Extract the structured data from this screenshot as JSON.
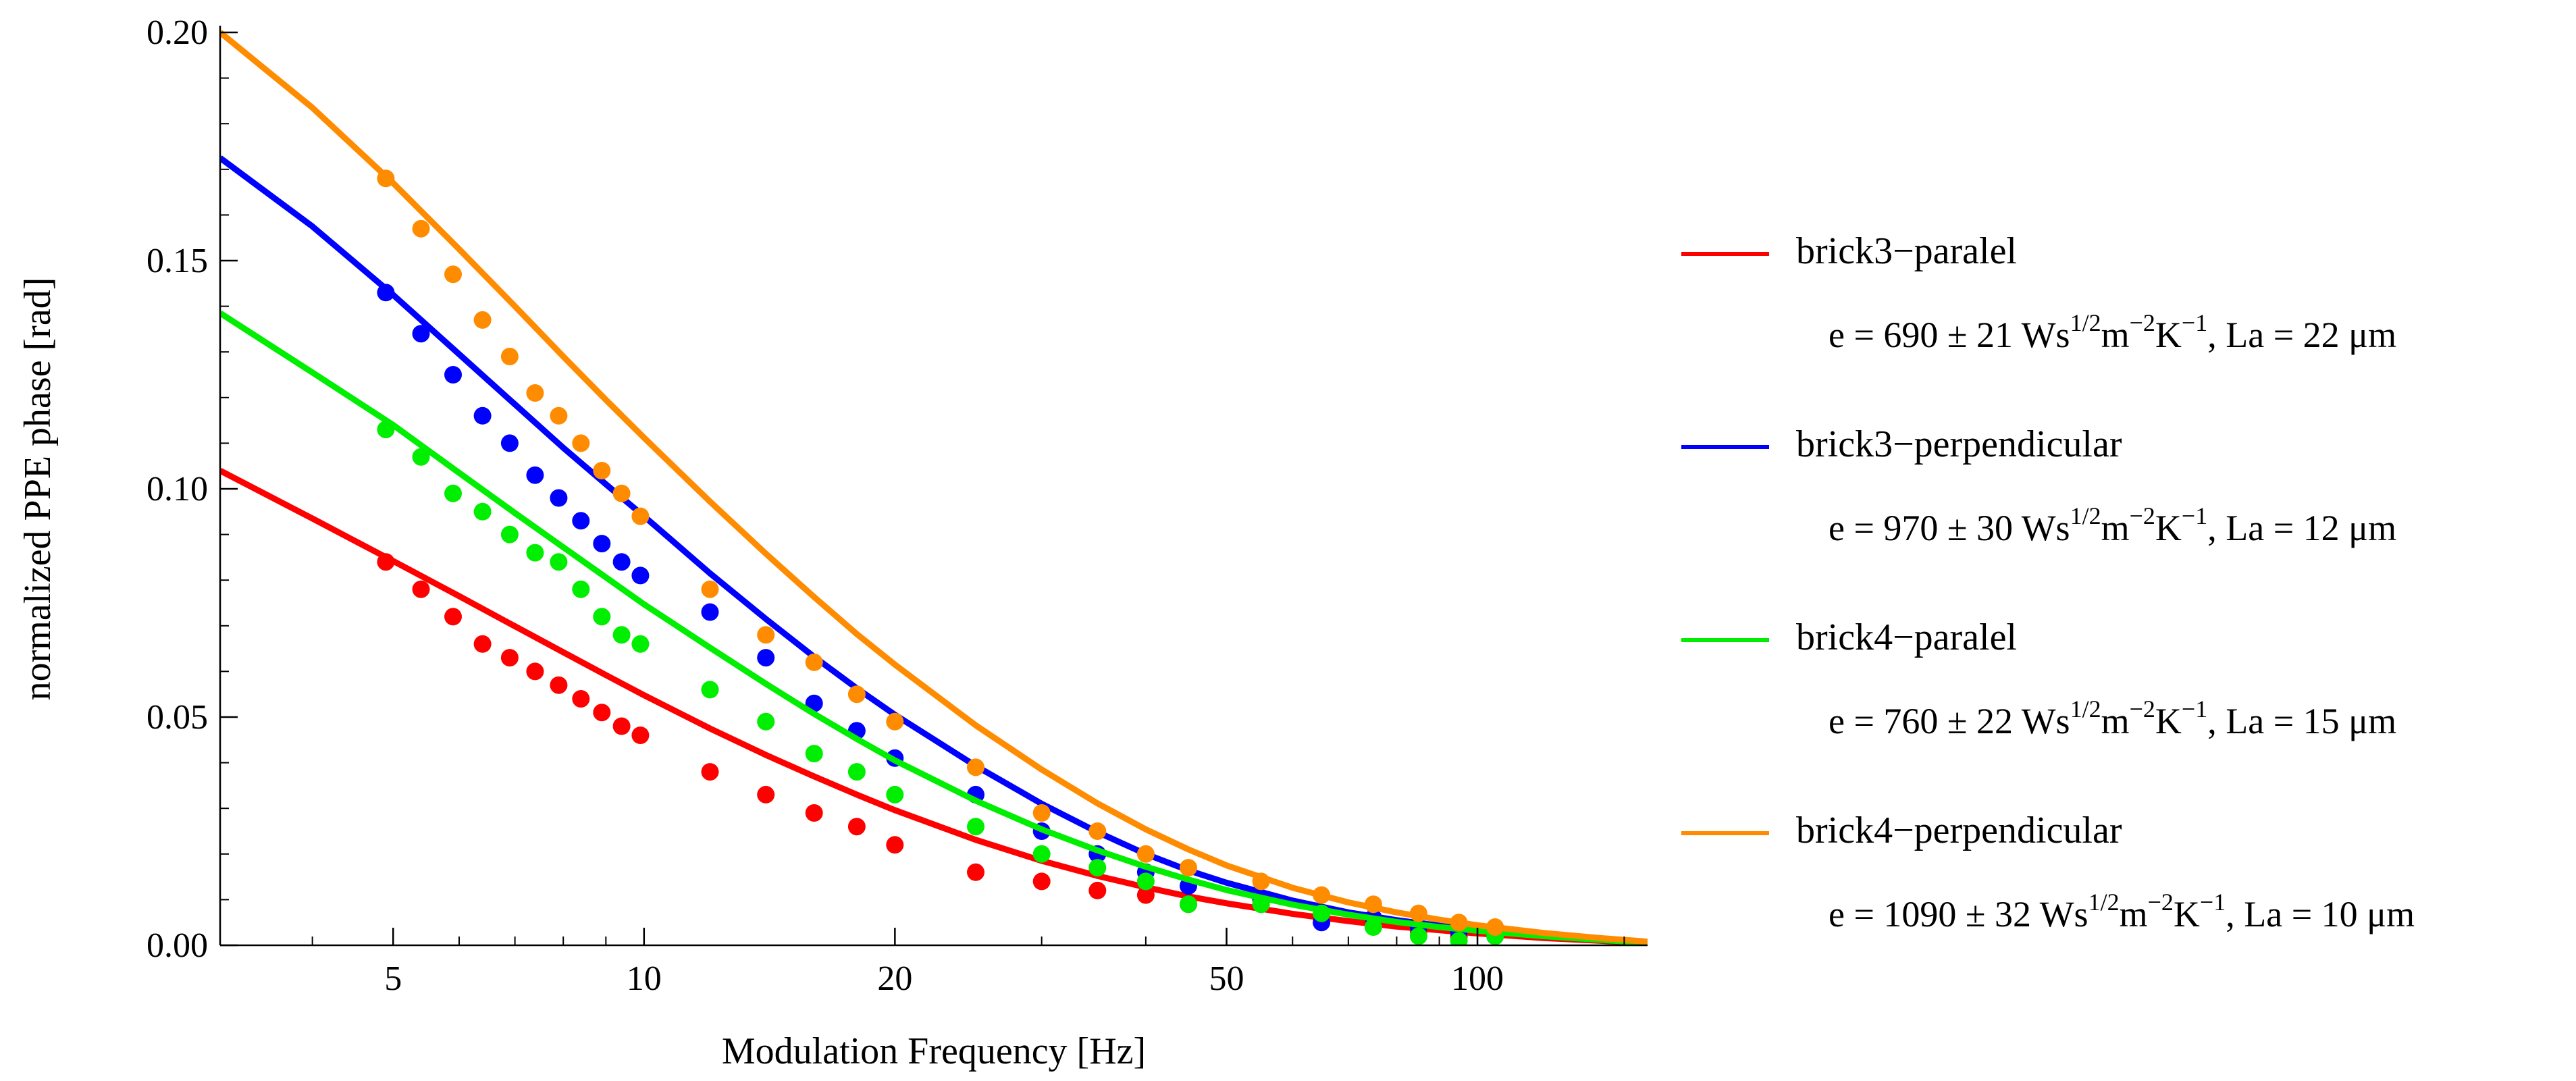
{
  "chart_data": {
    "type": "scatter",
    "title": "",
    "xlabel": "Modulation Frequency [Hz]",
    "ylabel": "normalized PPE phase  [rad]",
    "xscale": "log",
    "xlim": [
      3.1,
      160
    ],
    "ylim": [
      0,
      0.2
    ],
    "xticks": [
      5,
      10,
      20,
      50,
      100
    ],
    "xtick_labels": [
      "5",
      "10",
      "20",
      "50",
      "100"
    ],
    "yticks": [
      0,
      0.05,
      0.1,
      0.15,
      0.2
    ],
    "ytick_labels": [
      "0.00",
      "0.05",
      "0.10",
      "0.15",
      "0.20"
    ],
    "legend_position": "right",
    "series": [
      {
        "name": "brick3−paralel",
        "color": "#ff0000",
        "e_prefix": "e = 690 ± 21 Ws",
        "e_sup1": "1/2",
        "e_m": "m",
        "e_sup2": "−2",
        "e_K": "K",
        "e_sup3": "−1",
        "la_text": ",   La = 22 μm",
        "x": [
          4.9,
          5.4,
          5.9,
          6.4,
          6.9,
          7.4,
          7.9,
          8.4,
          8.9,
          9.4,
          9.9,
          12,
          14,
          16,
          18,
          20,
          25,
          30,
          35,
          40,
          45,
          55,
          65,
          75,
          85,
          95,
          105
        ],
        "y": [
          0.084,
          0.078,
          0.072,
          0.066,
          0.063,
          0.06,
          0.057,
          0.054,
          0.051,
          0.048,
          0.046,
          0.038,
          0.033,
          0.029,
          0.026,
          0.022,
          0.016,
          0.014,
          0.012,
          0.011,
          0.009,
          0.009,
          0.006,
          0.005,
          0.003,
          0.002,
          0.003
        ],
        "fit_x": [
          3.1,
          4,
          5,
          6,
          7,
          8,
          9,
          10,
          12,
          14,
          16,
          18,
          20,
          25,
          30,
          35,
          40,
          45,
          50,
          60,
          70,
          80,
          90,
          100,
          120,
          140,
          160
        ],
        "fit_y": [
          0.104,
          0.0935,
          0.0842,
          0.0765,
          0.0699,
          0.0642,
          0.0592,
          0.0548,
          0.0475,
          0.0417,
          0.037,
          0.033,
          0.0296,
          0.0231,
          0.0185,
          0.0152,
          0.0127,
          0.0107,
          0.0092,
          0.0069,
          0.0053,
          0.0041,
          0.0033,
          0.0026,
          0.0016,
          0.001,
          0.0004
        ]
      },
      {
        "name": "brick3−perpendicular",
        "color": "#0000ff",
        "e_prefix": "e = 970 ± 30 Ws",
        "e_sup1": "1/2",
        "e_m": "m",
        "e_sup2": "−2",
        "e_K": "K",
        "e_sup3": "−1",
        "la_text": ",   La = 12 μm",
        "x": [
          4.9,
          5.4,
          5.9,
          6.4,
          6.9,
          7.4,
          7.9,
          8.4,
          8.9,
          9.4,
          9.9,
          12,
          14,
          16,
          18,
          20,
          25,
          30,
          35,
          40,
          45,
          55,
          65,
          75,
          85,
          95,
          105
        ],
        "y": [
          0.143,
          0.134,
          0.125,
          0.116,
          0.11,
          0.103,
          0.098,
          0.093,
          0.088,
          0.084,
          0.081,
          0.073,
          0.063,
          0.053,
          0.047,
          0.041,
          0.033,
          0.025,
          0.02,
          0.016,
          0.013,
          0.01,
          0.005,
          0.006,
          0.004,
          0.003,
          0.002
        ],
        "fit_x": [
          3.1,
          4,
          5,
          6,
          7,
          8,
          9,
          10,
          12,
          14,
          16,
          18,
          20,
          25,
          30,
          35,
          40,
          45,
          50,
          60,
          70,
          80,
          90,
          100,
          120,
          140,
          160
        ],
        "fit_y": [
          0.1725,
          0.1575,
          0.1425,
          0.1295,
          0.1185,
          0.109,
          0.101,
          0.094,
          0.0815,
          0.0715,
          0.0632,
          0.0563,
          0.0505,
          0.0393,
          0.031,
          0.0248,
          0.02,
          0.0164,
          0.0137,
          0.0098,
          0.0072,
          0.0055,
          0.0043,
          0.0034,
          0.0021,
          0.0012,
          0.0005
        ]
      },
      {
        "name": "brick4−paralel",
        "color": "#00ee00",
        "e_prefix": "e = 760 ± 22 Ws",
        "e_sup1": "1/2",
        "e_m": "m",
        "e_sup2": "−2",
        "e_K": "K",
        "e_sup3": "−1",
        "la_text": ",   La = 15 μm",
        "x": [
          4.9,
          5.4,
          5.9,
          6.4,
          6.9,
          7.4,
          7.9,
          8.4,
          8.9,
          9.4,
          9.9,
          12,
          14,
          16,
          18,
          20,
          25,
          30,
          35,
          40,
          45,
          55,
          65,
          75,
          85,
          95,
          105
        ],
        "y": [
          0.113,
          0.107,
          0.099,
          0.095,
          0.09,
          0.086,
          0.084,
          0.078,
          0.072,
          0.068,
          0.066,
          0.056,
          0.049,
          0.042,
          0.038,
          0.033,
          0.026,
          0.02,
          0.017,
          0.014,
          0.009,
          0.009,
          0.007,
          0.004,
          0.002,
          0.001,
          0.002
        ],
        "fit_x": [
          3.1,
          4,
          5,
          6,
          7,
          8,
          9,
          10,
          12,
          14,
          16,
          18,
          20,
          25,
          30,
          35,
          40,
          45,
          50,
          60,
          70,
          80,
          90,
          100,
          120,
          140,
          160
        ],
        "fit_y": [
          0.1385,
          0.1255,
          0.114,
          0.1035,
          0.0947,
          0.0872,
          0.0806,
          0.0747,
          0.0652,
          0.0573,
          0.0507,
          0.0452,
          0.0405,
          0.0317,
          0.0254,
          0.0208,
          0.0172,
          0.0144,
          0.0121,
          0.0089,
          0.0067,
          0.0051,
          0.004,
          0.0032,
          0.002,
          0.0012,
          0.0005
        ]
      },
      {
        "name": "brick4−perpendicular",
        "color": "#ff8c00",
        "e_prefix": "e = 1090 ± 32 Ws",
        "e_sup1": "1/2",
        "e_m": "m",
        "e_sup2": "−2",
        "e_K": "K",
        "e_sup3": "−1",
        "la_text": ",   La = 10 μm",
        "x": [
          4.9,
          5.4,
          5.9,
          6.4,
          6.9,
          7.4,
          7.9,
          8.4,
          8.9,
          9.4,
          9.9,
          12,
          14,
          16,
          18,
          20,
          25,
          30,
          35,
          40,
          45,
          55,
          65,
          75,
          85,
          95,
          105
        ],
        "y": [
          0.168,
          0.157,
          0.147,
          0.137,
          0.129,
          0.121,
          0.116,
          0.11,
          0.104,
          0.099,
          0.094,
          0.078,
          0.068,
          0.062,
          0.055,
          0.049,
          0.039,
          0.029,
          0.025,
          0.02,
          0.017,
          0.014,
          0.011,
          0.009,
          0.007,
          0.005,
          0.004
        ],
        "fit_x": [
          3.1,
          4,
          5,
          6,
          7,
          8,
          9,
          10,
          12,
          14,
          16,
          18,
          20,
          25,
          30,
          35,
          40,
          45,
          50,
          60,
          70,
          80,
          90,
          100,
          120,
          140,
          160
        ],
        "fit_y": [
          0.2,
          0.1835,
          0.167,
          0.1525,
          0.14,
          0.129,
          0.1195,
          0.1112,
          0.0972,
          0.0858,
          0.0763,
          0.0682,
          0.0615,
          0.0482,
          0.0385,
          0.0311,
          0.0254,
          0.021,
          0.0175,
          0.0126,
          0.0094,
          0.0072,
          0.0056,
          0.0044,
          0.0027,
          0.0016,
          0.0008
        ]
      }
    ]
  }
}
